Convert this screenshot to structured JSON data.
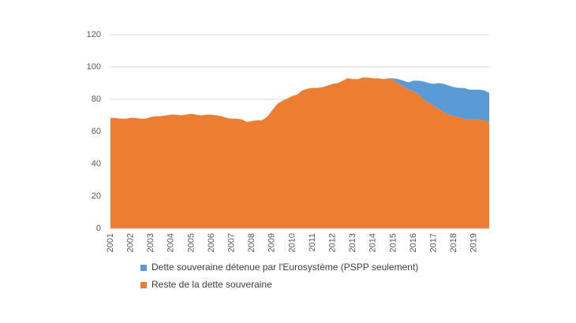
{
  "chart_data": {
    "type": "stacked_area",
    "categories": [
      "2001",
      null,
      null,
      null,
      "2002",
      null,
      null,
      null,
      "2003",
      null,
      null,
      null,
      "2004",
      null,
      null,
      null,
      "2005",
      null,
      null,
      null,
      "2006",
      null,
      null,
      null,
      "2007",
      null,
      null,
      null,
      "2008",
      null,
      null,
      null,
      "2009",
      null,
      null,
      null,
      "2010",
      null,
      null,
      null,
      "2011",
      null,
      null,
      null,
      "2012",
      null,
      null,
      null,
      "2013",
      null,
      null,
      null,
      "2014",
      null,
      null,
      null,
      "2015",
      null,
      null,
      null,
      "2016",
      null,
      null,
      null,
      "2017",
      null,
      null,
      null,
      "2018",
      null,
      null,
      null,
      "2019",
      null,
      null,
      null
    ],
    "series": [
      {
        "name": "Dette souveraine détenue par l'Eurosystème (PSPP seulement)",
        "color": "#5b9bd5",
        "values": [
          0,
          0,
          0,
          0,
          0,
          0,
          0,
          0,
          0,
          0,
          0,
          0,
          0,
          0,
          0,
          0,
          0,
          0,
          0,
          0,
          0,
          0,
          0,
          0,
          0,
          0,
          0,
          0,
          0,
          0,
          0,
          0,
          0,
          0,
          0,
          0,
          0,
          0,
          0,
          0,
          0,
          0,
          0,
          0,
          0,
          0,
          0,
          0,
          0,
          0,
          0,
          0,
          0,
          0,
          0,
          0,
          1,
          2.5,
          3.5,
          4.5,
          6.5,
          8.5,
          11,
          12,
          13.5,
          16,
          17.5,
          18,
          18,
          18,
          19,
          18.5,
          18.5,
          18.5,
          18.5,
          18.5
        ]
      },
      {
        "name": "Reste de la dette souveraine",
        "color": "#ed7d31",
        "values": [
          68.5,
          68.5,
          68,
          68,
          68.5,
          68.5,
          68,
          68,
          69,
          69.5,
          69.5,
          70,
          70.5,
          70.5,
          70,
          70.5,
          71,
          70.5,
          70,
          70.5,
          70.5,
          70,
          69.5,
          68.5,
          68,
          68,
          67.5,
          66,
          66.5,
          67,
          67,
          69,
          73,
          77,
          79,
          80.5,
          82,
          83,
          85.5,
          86.5,
          87,
          87,
          87.5,
          88.5,
          89.5,
          90,
          91.5,
          93,
          92.5,
          92.5,
          93.5,
          93.5,
          93,
          93,
          92.5,
          93,
          92,
          90,
          88,
          86,
          85,
          83,
          80,
          78,
          76,
          74,
          72,
          70.5,
          69.5,
          69,
          68,
          67.5,
          67.5,
          67.5,
          67,
          65.5
        ]
      }
    ],
    "stack_order": [
      1,
      0
    ],
    "ylim": [
      0,
      120
    ],
    "yticks": [
      0,
      20,
      40,
      60,
      80,
      100,
      120
    ],
    "grid": true,
    "legend": "bottom"
  }
}
